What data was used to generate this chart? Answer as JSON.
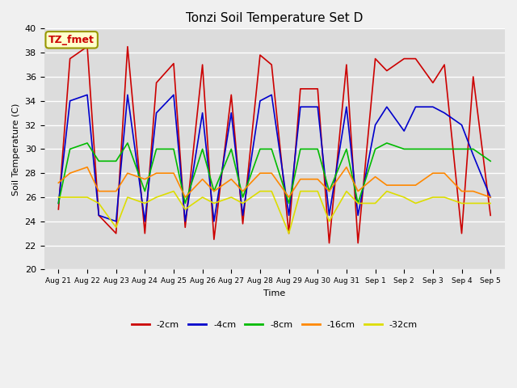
{
  "title": "Tonzi Soil Temperature Set D",
  "xlabel": "Time",
  "ylabel": "Soil Temperature (C)",
  "ylim": [
    20,
    40
  ],
  "annotation": "TZ_fmet",
  "x_tick_labels": [
    "Aug 21",
    "Aug 22",
    "Aug 23",
    "Aug 24",
    "Aug 25",
    "Aug 26",
    "Aug 27",
    "Aug 28",
    "Aug 29",
    "Aug 30",
    "Aug 31",
    "Sep 1",
    "Sep 2",
    "Sep 3",
    "Sep 4",
    "Sep 5"
  ],
  "series": {
    "-2cm": {
      "color": "#cc0000",
      "x": [
        0,
        0.4,
        1,
        1.4,
        2,
        2.4,
        3,
        3.4,
        4,
        4.4,
        5,
        5.4,
        6,
        6.4,
        7,
        7.4,
        8,
        8.4,
        9,
        9.4,
        10,
        10.4,
        11,
        11.4,
        12,
        12.4,
        13,
        13.4,
        14,
        14.4,
        15
      ],
      "y": [
        25.0,
        37.5,
        38.5,
        24.5,
        23.0,
        38.5,
        23.0,
        35.5,
        37.1,
        23.5,
        37.0,
        22.5,
        34.5,
        23.8,
        37.8,
        37.0,
        23.0,
        35.0,
        35.0,
        22.2,
        37.0,
        22.2,
        37.5,
        36.5,
        37.5,
        37.5,
        35.5,
        37.0,
        23.0,
        36.0,
        24.5
      ]
    },
    "-4cm": {
      "color": "#0000cc",
      "x": [
        0,
        0.4,
        1,
        1.4,
        2,
        2.4,
        3,
        3.4,
        4,
        4.4,
        5,
        5.4,
        6,
        6.4,
        7,
        7.4,
        8,
        8.4,
        9,
        9.4,
        10,
        10.4,
        11,
        11.4,
        12,
        12.4,
        13,
        13.4,
        14,
        14.4,
        15
      ],
      "y": [
        25.5,
        34.0,
        34.5,
        24.5,
        24.0,
        34.5,
        24.0,
        33.0,
        34.5,
        24.0,
        33.0,
        24.0,
        33.0,
        24.5,
        34.0,
        34.5,
        24.5,
        33.5,
        33.5,
        24.5,
        33.5,
        24.5,
        32.0,
        33.5,
        31.5,
        33.5,
        33.5,
        33.0,
        32.0,
        29.5,
        26.0
      ]
    },
    "-8cm": {
      "color": "#00bb00",
      "x": [
        0,
        0.4,
        1,
        1.4,
        2,
        2.4,
        3,
        3.4,
        4,
        4.4,
        5,
        5.4,
        6,
        6.4,
        7,
        7.4,
        8,
        8.4,
        9,
        9.4,
        10,
        10.4,
        11,
        11.4,
        12,
        12.4,
        13,
        13.4,
        14,
        14.4,
        15
      ],
      "y": [
        25.5,
        30.0,
        30.5,
        29.0,
        29.0,
        30.5,
        26.5,
        30.0,
        30.0,
        25.5,
        30.0,
        26.5,
        30.0,
        26.0,
        30.0,
        30.0,
        25.5,
        30.0,
        30.0,
        26.5,
        30.0,
        25.5,
        30.0,
        30.5,
        30.0,
        30.0,
        30.0,
        30.0,
        30.0,
        30.0,
        29.0
      ]
    },
    "-16cm": {
      "color": "#ff8800",
      "x": [
        0,
        0.4,
        1,
        1.4,
        2,
        2.4,
        3,
        3.4,
        4,
        4.4,
        5,
        5.4,
        6,
        6.4,
        7,
        7.4,
        8,
        8.4,
        9,
        9.4,
        10,
        10.4,
        11,
        11.4,
        12,
        12.4,
        13,
        13.4,
        14,
        14.4,
        15
      ],
      "y": [
        27.2,
        28.0,
        28.5,
        26.5,
        26.5,
        28.0,
        27.5,
        28.0,
        28.0,
        26.0,
        27.5,
        26.5,
        27.5,
        26.5,
        28.0,
        28.0,
        26.0,
        27.5,
        27.5,
        26.5,
        28.5,
        26.5,
        27.7,
        27.0,
        27.0,
        27.0,
        28.0,
        28.0,
        26.5,
        26.5,
        26.0
      ]
    },
    "-32cm": {
      "color": "#dddd00",
      "x": [
        0,
        0.4,
        1,
        1.4,
        2,
        2.4,
        3,
        3.4,
        4,
        4.4,
        5,
        5.4,
        6,
        6.4,
        7,
        7.4,
        8,
        8.4,
        9,
        9.4,
        10,
        10.4,
        11,
        11.4,
        12,
        12.4,
        13,
        13.4,
        14,
        14.4,
        15
      ],
      "y": [
        26.0,
        26.0,
        26.0,
        25.5,
        23.5,
        26.0,
        25.5,
        26.0,
        26.5,
        25.0,
        26.0,
        25.5,
        26.0,
        25.5,
        26.5,
        26.5,
        23.0,
        26.5,
        26.5,
        24.0,
        26.5,
        25.5,
        25.5,
        26.5,
        26.0,
        25.5,
        26.0,
        26.0,
        25.5,
        25.5,
        25.5
      ]
    }
  },
  "fig_width": 6.4,
  "fig_height": 4.8,
  "dpi": 100
}
